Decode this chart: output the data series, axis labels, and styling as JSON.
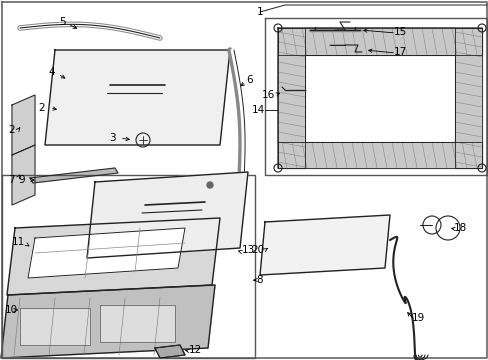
{
  "bg_color": "#ffffff",
  "line_color": "#222222",
  "border_color": "#444444",
  "label_fontsize": 7.5
}
